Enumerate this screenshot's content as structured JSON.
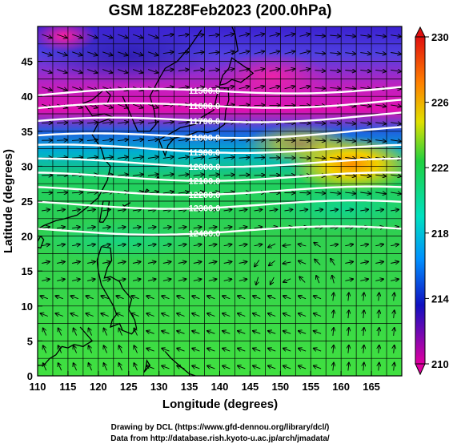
{
  "title": "GSM 18Z28Feb2023 (200.0hPa)",
  "x_axis": {
    "label": "Longitude (degrees)",
    "range": [
      110,
      170
    ],
    "ticks": [
      110,
      115,
      120,
      125,
      130,
      135,
      140,
      145,
      150,
      155,
      160,
      165
    ]
  },
  "y_axis": {
    "label": "Latitude  (degrees)",
    "range": [
      0,
      50
    ],
    "ticks": [
      0,
      5,
      10,
      15,
      20,
      25,
      30,
      35,
      40,
      45
    ]
  },
  "colorbar": {
    "range": [
      210,
      230
    ],
    "labels": [
      230,
      226,
      222,
      218,
      214,
      210
    ],
    "colors": [
      "#e000a0",
      "#1010c0",
      "#0090ff",
      "#00e0c0",
      "#20d040",
      "#e0e000",
      "#ff8000",
      "#e01010"
    ]
  },
  "contours": [
    {
      "label": "11500.0",
      "lat": 40.5
    },
    {
      "label": "11600.0",
      "lat": 38.5
    },
    {
      "label": "11700.0",
      "lat": 36.5
    },
    {
      "label": "11800.0",
      "lat": 34.3
    },
    {
      "label": "11900.0",
      "lat": 32.5
    },
    {
      "label": "12000.0",
      "lat": 30.5
    },
    {
      "label": "12100.0",
      "lat": 28.5
    },
    {
      "label": "12200.0",
      "lat": 26.5
    },
    {
      "label": "12300.0",
      "lat": 24.5
    },
    {
      "label": "12400.0",
      "lat": 20.8
    }
  ],
  "credits": {
    "line1": "Drawing by DCL (https://www.gfd-dennou.org/library/dcl/)",
    "line2": "Data from http://database.rish.kyoto-u.ac.jp/arch/jmadata/"
  }
}
